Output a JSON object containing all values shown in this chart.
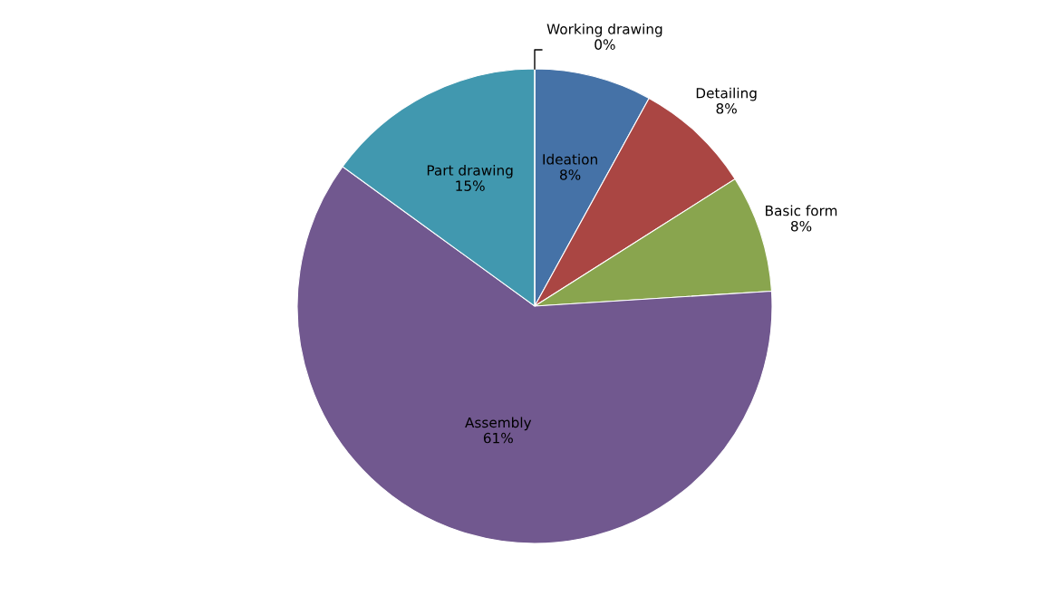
{
  "chart_data": {
    "type": "pie",
    "categories": [
      "Ideation",
      "Detailing",
      "Basic form",
      "Assembly",
      "Part drawing",
      "Working drawing"
    ],
    "values": [
      8,
      8,
      8,
      61,
      15,
      0
    ],
    "colors": [
      "#4572a7",
      "#aa4643",
      "#89a54e",
      "#71588f",
      "#4198af",
      "#db843d"
    ],
    "value_labels": [
      "8%",
      "8%",
      "8%",
      "61%",
      "15%",
      "0%"
    ]
  }
}
